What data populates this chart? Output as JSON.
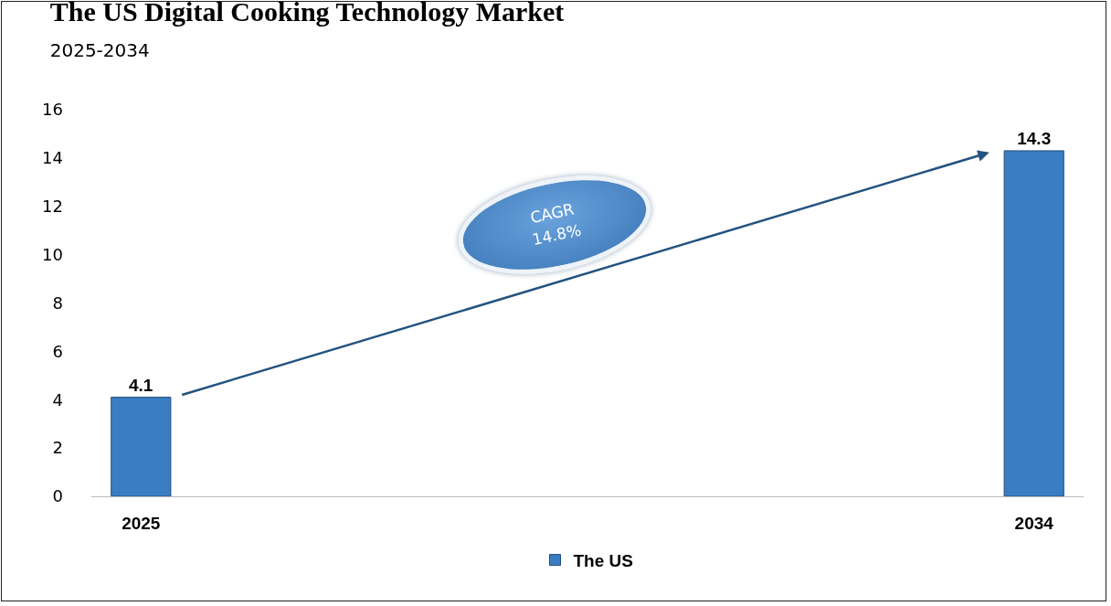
{
  "chart_data": {
    "type": "bar",
    "title": "The US Digital Cooking Technology Market",
    "subtitle": "2025-2034",
    "categories": [
      "2025",
      null,
      null,
      null,
      null,
      null,
      null,
      null,
      null,
      "2034"
    ],
    "series": [
      {
        "name": "The US",
        "color": "#3a7dc2",
        "values": [
          4.1,
          null,
          null,
          null,
          null,
          null,
          null,
          null,
          null,
          14.3
        ]
      }
    ],
    "ylim": [
      0,
      16
    ],
    "yticks": [
      0,
      2,
      4,
      6,
      8,
      10,
      12,
      14,
      16
    ],
    "grid": false,
    "legend": "bottom",
    "data_labels": true,
    "annotations": [
      "CAGR\n14.8%"
    ]
  }
}
